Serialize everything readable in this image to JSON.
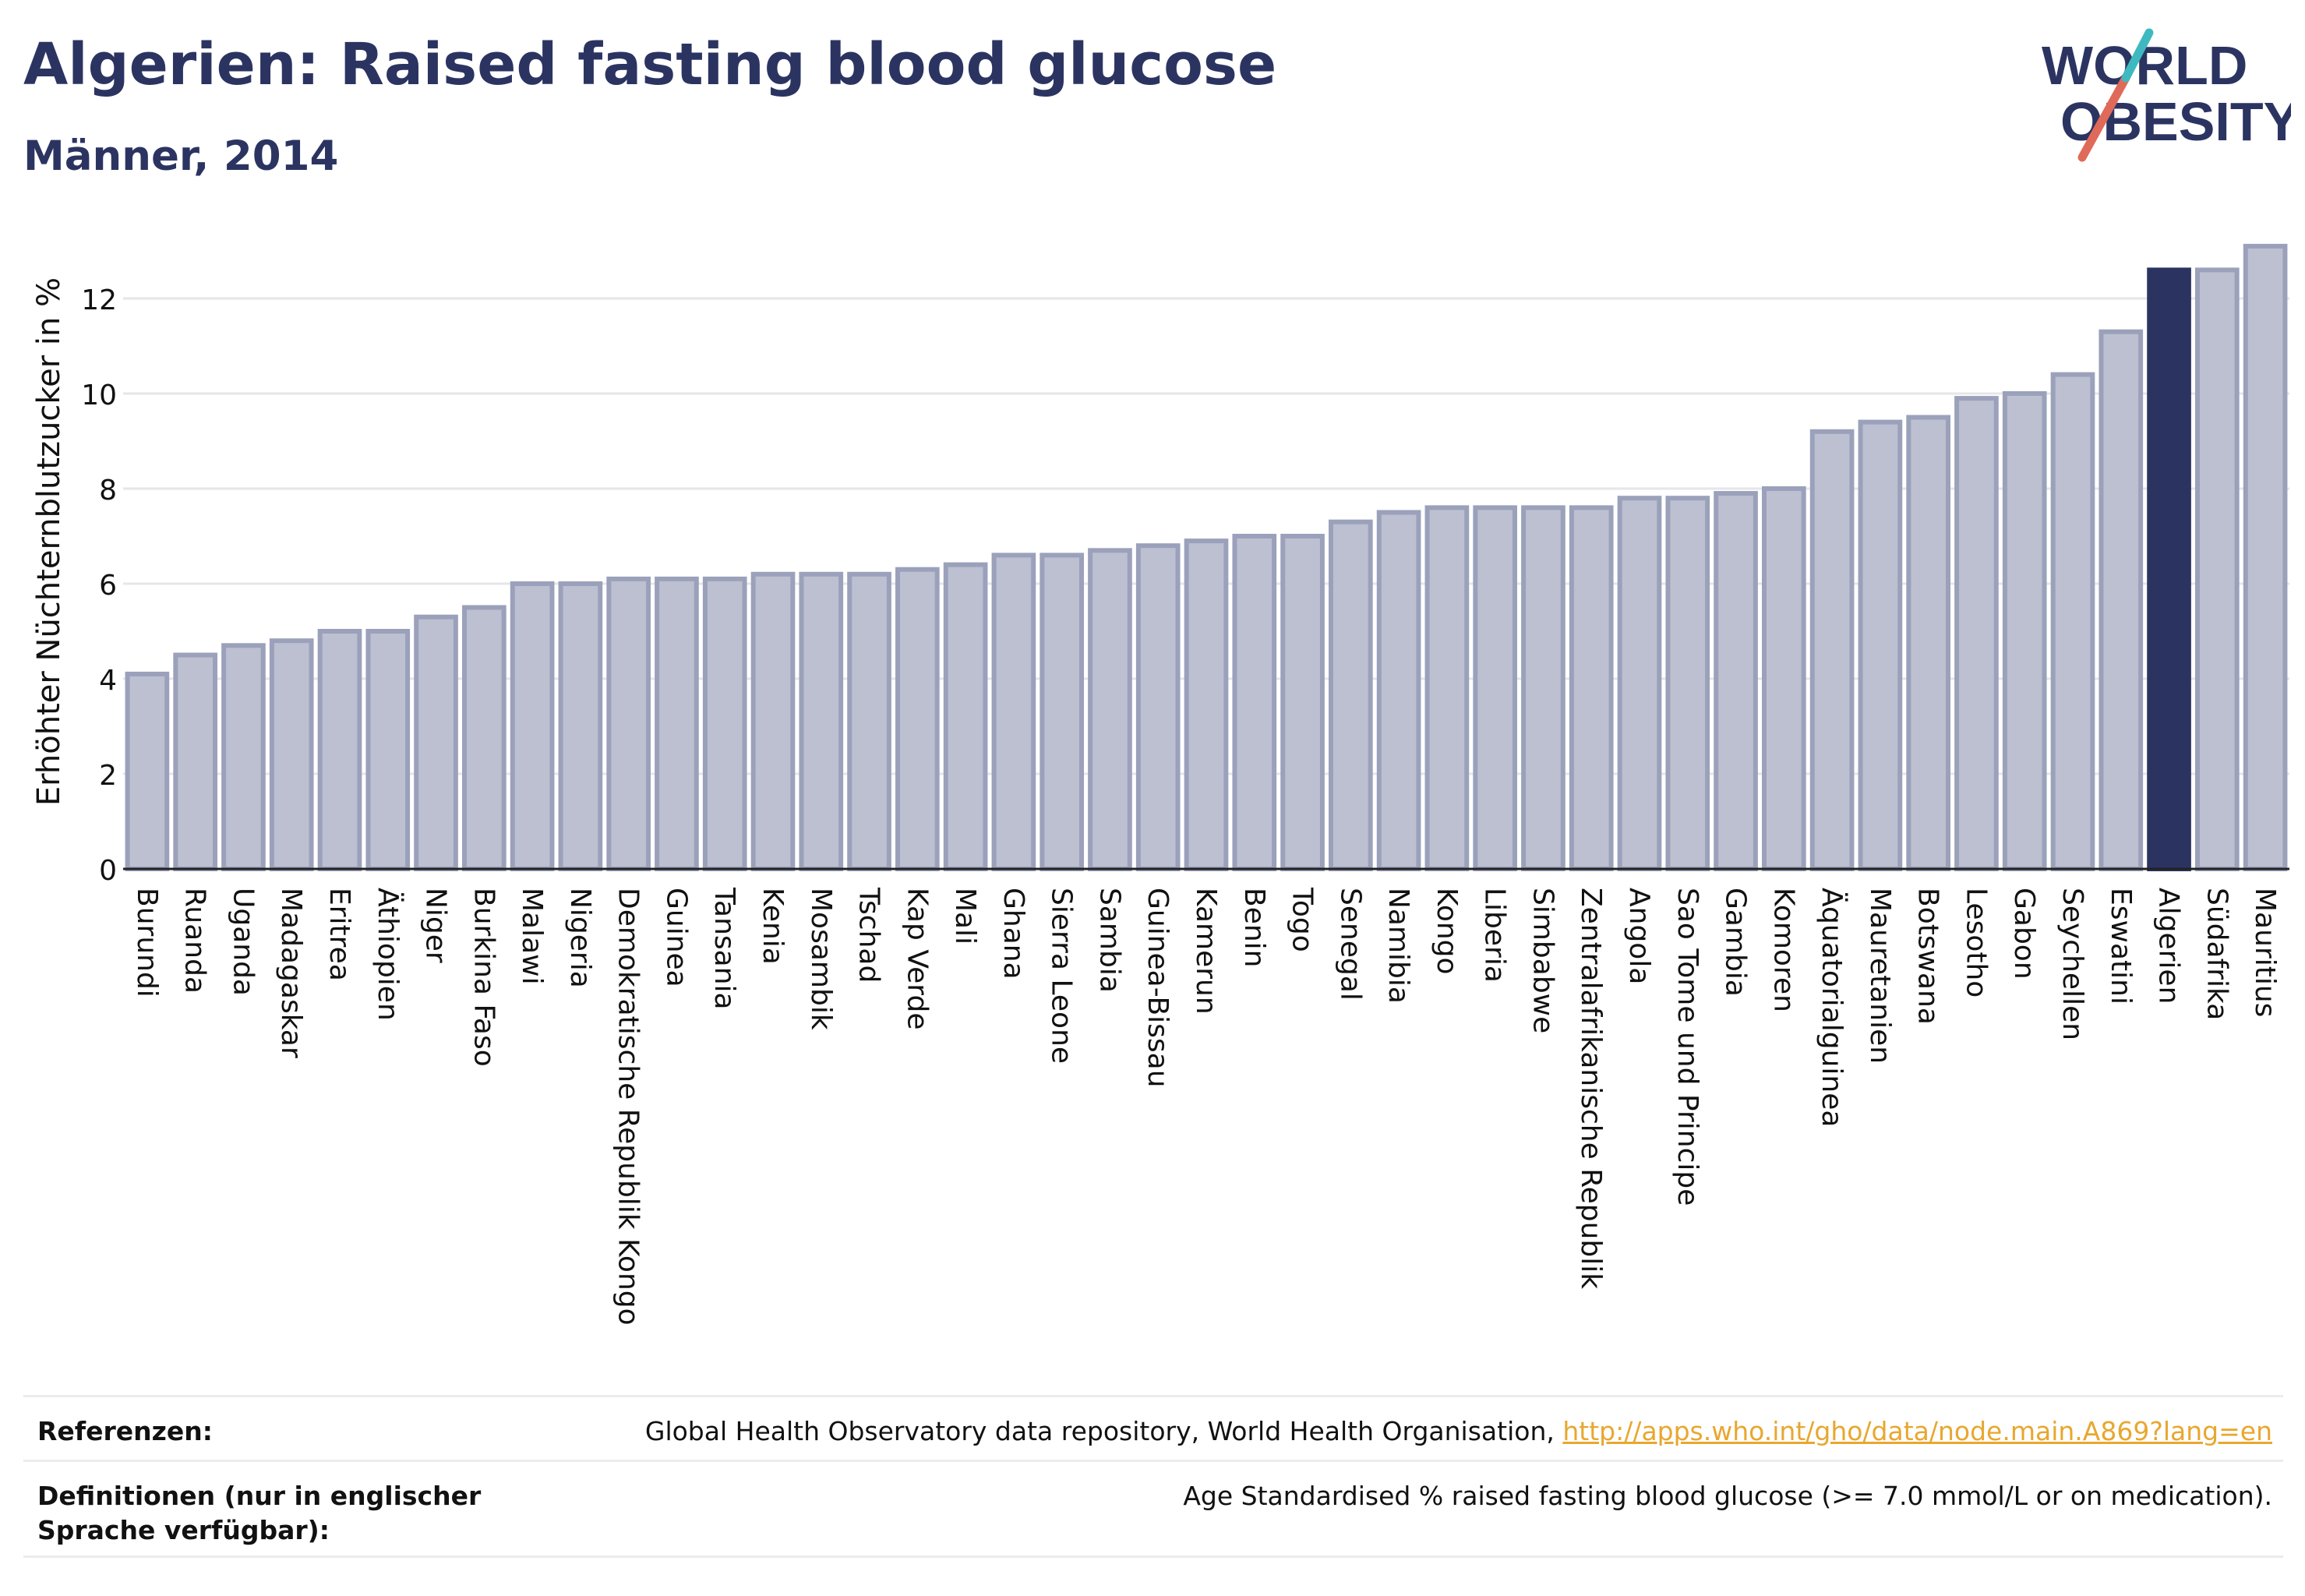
{
  "header": {
    "title": "Algerien: Raised fasting blood glucose",
    "subtitle": "Männer, 2014"
  },
  "logo": {
    "line1": "WORLD",
    "line2": "OBESITY"
  },
  "colors": {
    "bar_default": "#bcc0d0",
    "bar_default_stroke": "#9ba1bb",
    "bar_highlight": "#2b3461",
    "text": "#2b3461"
  },
  "chart_data": {
    "type": "bar",
    "ylabel": "Erhöhter Nüchternblutzucker in %",
    "ylim": [
      0,
      13.5
    ],
    "yticks": [
      0,
      2,
      4,
      6,
      8,
      10,
      12
    ],
    "grid": true,
    "highlight": "Algerien",
    "categories": [
      "Burundi",
      "Ruanda",
      "Uganda",
      "Madagaskar",
      "Eritrea",
      "Äthiopien",
      "Niger",
      "Burkina Faso",
      "Malawi",
      "Nigeria",
      "Demokratische Republik Kongo",
      "Guinea",
      "Tansania",
      "Kenia",
      "Mosambik",
      "Tschad",
      "Kap Verde",
      "Mali",
      "Ghana",
      "Sierra Leone",
      "Sambia",
      "Guinea-Bissau",
      "Kamerun",
      "Benin",
      "Togo",
      "Senegal",
      "Namibia",
      "Kongo",
      "Liberia",
      "Simbabwe",
      "Zentralafrikanische Republik",
      "Angola",
      "Sao Tome und Principe",
      "Gambia",
      "Komoren",
      "Äquatorialguinea",
      "Mauretanien",
      "Botswana",
      "Lesotho",
      "Gabon",
      "Seychellen",
      "Eswatini",
      "Algerien",
      "Südafrika",
      "Mauritius"
    ],
    "values": [
      4.1,
      4.5,
      4.7,
      4.8,
      5.0,
      5.0,
      5.3,
      5.5,
      6.0,
      6.0,
      6.1,
      6.1,
      6.1,
      6.2,
      6.2,
      6.2,
      6.3,
      6.4,
      6.6,
      6.6,
      6.7,
      6.8,
      6.9,
      7.0,
      7.0,
      7.3,
      7.5,
      7.6,
      7.6,
      7.6,
      7.6,
      7.8,
      7.8,
      7.9,
      8.0,
      9.2,
      9.4,
      9.5,
      9.9,
      10.0,
      10.4,
      11.3,
      12.6,
      12.6,
      13.1
    ]
  },
  "references": {
    "label": "Referenzen:",
    "text": "Global Health Observatory data repository, World Health Organisation, ",
    "link": "http://apps.who.int/gho/data/node.main.A869?lang=en"
  },
  "definitions": {
    "label": "Definitionen (nur in englischer Sprache verfügbar):",
    "text": "Age Standardised % raised fasting blood glucose (>= 7.0 mmol/L or on medication)."
  }
}
